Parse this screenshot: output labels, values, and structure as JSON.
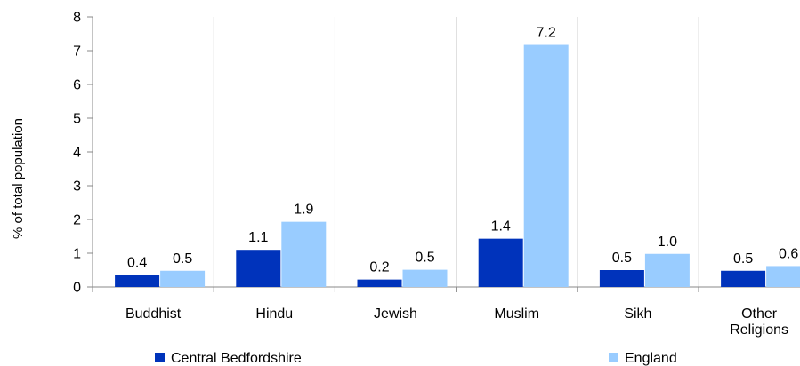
{
  "chart_data": {
    "type": "bar",
    "title": "",
    "xlabel": "",
    "ylabel": "% of total population",
    "ylim": [
      0,
      8
    ],
    "yticks": [
      0,
      1,
      2,
      3,
      4,
      5,
      6,
      7,
      8
    ],
    "grid": "vertical",
    "legend_position": "bottom",
    "categories": [
      [
        "Buddhist"
      ],
      [
        "Hindu"
      ],
      [
        "Jewish"
      ],
      [
        "Muslim"
      ],
      [
        "Sikh"
      ],
      [
        "Other",
        "Religions"
      ]
    ],
    "series": [
      {
        "name": "Central Bedfordshire",
        "color": "#0033bb",
        "values": [
          0.35,
          1.1,
          0.22,
          1.43,
          0.5,
          0.48
        ],
        "labels": [
          "0.4",
          "1.1",
          "0.2",
          "1.4",
          "0.5",
          "0.5"
        ]
      },
      {
        "name": "England",
        "color": "#99ccff",
        "values": [
          0.48,
          1.93,
          0.51,
          7.17,
          0.98,
          0.62
        ],
        "labels": [
          "0.5",
          "1.9",
          "0.5",
          "7.2",
          "1.0",
          "0.6"
        ]
      }
    ]
  }
}
